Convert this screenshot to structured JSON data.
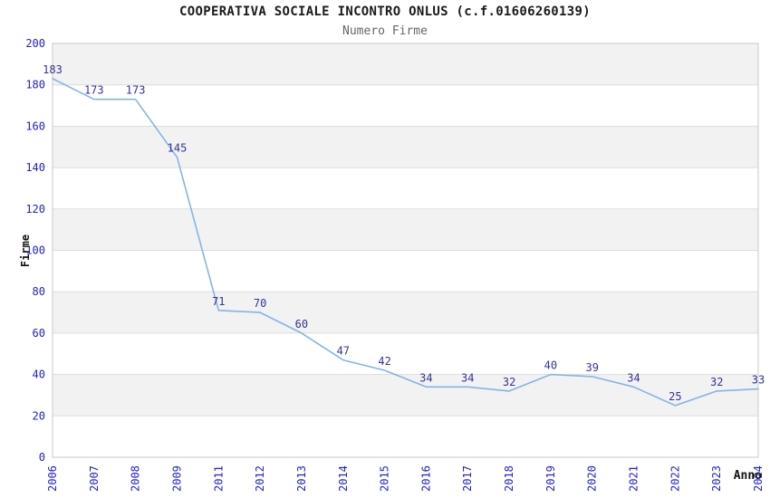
{
  "chart_data": {
    "type": "line",
    "title": "COOPERATIVA SOCIALE INCONTRO ONLUS (c.f.01606260139)",
    "subtitle": "Numero Firme",
    "xlabel": "Anno",
    "ylabel": "Firme",
    "categories": [
      "2006",
      "2007",
      "2008",
      "2009",
      "2011",
      "2012",
      "2013",
      "2014",
      "2015",
      "2016",
      "2017",
      "2018",
      "2019",
      "2020",
      "2021",
      "2022",
      "2023",
      "2024"
    ],
    "values": [
      183,
      173,
      173,
      145,
      71,
      70,
      60,
      47,
      42,
      34,
      34,
      32,
      40,
      39,
      34,
      25,
      32,
      33
    ],
    "ylim": [
      0,
      200
    ],
    "ytick_step": 20,
    "grid": "horizontal-bands-alternating",
    "legend": "none",
    "point_labels_shown": true,
    "colors": {
      "line": "#85b4e4",
      "tick_label": "#2222cc",
      "data_label": "#333399",
      "band_fill": "#f2f2f2",
      "grid_line": "#dddddd",
      "plot_border": "#c8c8c8",
      "title": "#1a1a1a",
      "subtitle": "#666666",
      "axis_title": "#111111"
    }
  }
}
